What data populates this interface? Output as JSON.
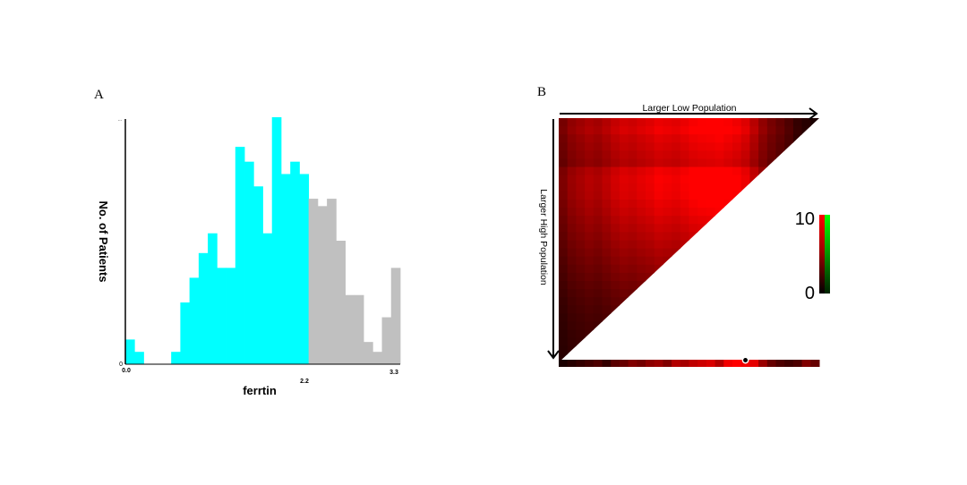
{
  "panels": {
    "a_letter": "A",
    "b_letter": "B"
  },
  "colors": {
    "cyan": "#00ffff",
    "gray": "#c0c0c0",
    "axis": "#000000",
    "heat_high": "#ff0000",
    "heat_low": "#000000",
    "legend_top": "#00ff00"
  },
  "chart_data": [
    {
      "type": "bar",
      "title": "",
      "xlabel": "ferrtin",
      "ylabel": "No. of Patients",
      "xlim": [
        0.0,
        3.3
      ],
      "x_ticks": [
        "0.0",
        "2.2",
        "3.3"
      ],
      "y_ticks": [
        "0",
        "..."
      ],
      "threshold": 2.2,
      "bin_width": 0.11,
      "bins": [
        {
          "x": 0.0,
          "count": 1,
          "group": "low"
        },
        {
          "x": 0.11,
          "count": 0.5,
          "group": "low"
        },
        {
          "x": 0.22,
          "count": 0,
          "group": "low"
        },
        {
          "x": 0.33,
          "count": 0,
          "group": "low"
        },
        {
          "x": 0.44,
          "count": 0,
          "group": "low"
        },
        {
          "x": 0.55,
          "count": 0.5,
          "group": "low"
        },
        {
          "x": 0.66,
          "count": 2.5,
          "group": "low"
        },
        {
          "x": 0.77,
          "count": 3.5,
          "group": "low"
        },
        {
          "x": 0.88,
          "count": 4.5,
          "group": "low"
        },
        {
          "x": 0.99,
          "count": 5.3,
          "group": "low"
        },
        {
          "x": 1.1,
          "count": 3.9,
          "group": "low"
        },
        {
          "x": 1.21,
          "count": 3.9,
          "group": "low"
        },
        {
          "x": 1.32,
          "count": 8.8,
          "group": "low"
        },
        {
          "x": 1.43,
          "count": 8.2,
          "group": "low"
        },
        {
          "x": 1.54,
          "count": 7.2,
          "group": "low"
        },
        {
          "x": 1.65,
          "count": 5.3,
          "group": "low"
        },
        {
          "x": 1.76,
          "count": 10,
          "group": "low"
        },
        {
          "x": 1.87,
          "count": 7.7,
          "group": "low"
        },
        {
          "x": 1.98,
          "count": 8.2,
          "group": "low"
        },
        {
          "x": 2.09,
          "count": 7.7,
          "group": "low"
        },
        {
          "x": 2.2,
          "count": 6.7,
          "group": "high"
        },
        {
          "x": 2.31,
          "count": 6.4,
          "group": "high"
        },
        {
          "x": 2.42,
          "count": 6.7,
          "group": "high"
        },
        {
          "x": 2.53,
          "count": 5.0,
          "group": "high"
        },
        {
          "x": 2.64,
          "count": 2.8,
          "group": "high"
        },
        {
          "x": 2.75,
          "count": 2.8,
          "group": "high"
        },
        {
          "x": 2.86,
          "count": 0.9,
          "group": "high"
        },
        {
          "x": 2.97,
          "count": 0.5,
          "group": "high"
        },
        {
          "x": 3.08,
          "count": 1.9,
          "group": "high"
        },
        {
          "x": 3.19,
          "count": 3.9,
          "group": "high"
        }
      ],
      "ylim": [
        0,
        10
      ]
    },
    {
      "type": "heatmap",
      "shape": "upper-triangle",
      "x_axis_label": "Larger Low Population",
      "y_axis_label": "Larger High Population",
      "colorbar": {
        "max_label": "10",
        "min_label": "0",
        "min": 0,
        "max": 10
      },
      "strip_note": "1-D intensity strip below triangle with one marked point",
      "column_profile": [
        0.45,
        0.55,
        0.6,
        0.65,
        0.62,
        0.68,
        0.75,
        0.8,
        0.78,
        0.82,
        0.85,
        0.9,
        0.88,
        0.86,
        0.9,
        0.95,
        0.97,
        0.98,
        1.0,
        0.96,
        0.92,
        0.85,
        0.7,
        0.55,
        0.45,
        0.38,
        0.3,
        0.2,
        0.15,
        0.1
      ],
      "row_profile": [
        0.9,
        0.95,
        0.85,
        0.8,
        0.75,
        0.7,
        0.95,
        1.0,
        0.98,
        0.96,
        0.9,
        0.85,
        0.78,
        0.72,
        0.66,
        0.6,
        0.54,
        0.48,
        0.42,
        0.36,
        0.3,
        0.25,
        0.2,
        0.16,
        0.12,
        0.09,
        0.06,
        0.04,
        0.02,
        0.0
      ],
      "strip_values": [
        0.1,
        0.15,
        0.2,
        0.25,
        0.3,
        0.2,
        0.35,
        0.4,
        0.5,
        0.45,
        0.55,
        0.6,
        0.5,
        0.7,
        0.65,
        0.75,
        0.8,
        0.85,
        0.7,
        0.95,
        1.0,
        0.95,
        0.9,
        0.6,
        0.4,
        0.3,
        0.25,
        0.3,
        0.5,
        0.4
      ],
      "strip_marker_index": 21
    }
  ]
}
